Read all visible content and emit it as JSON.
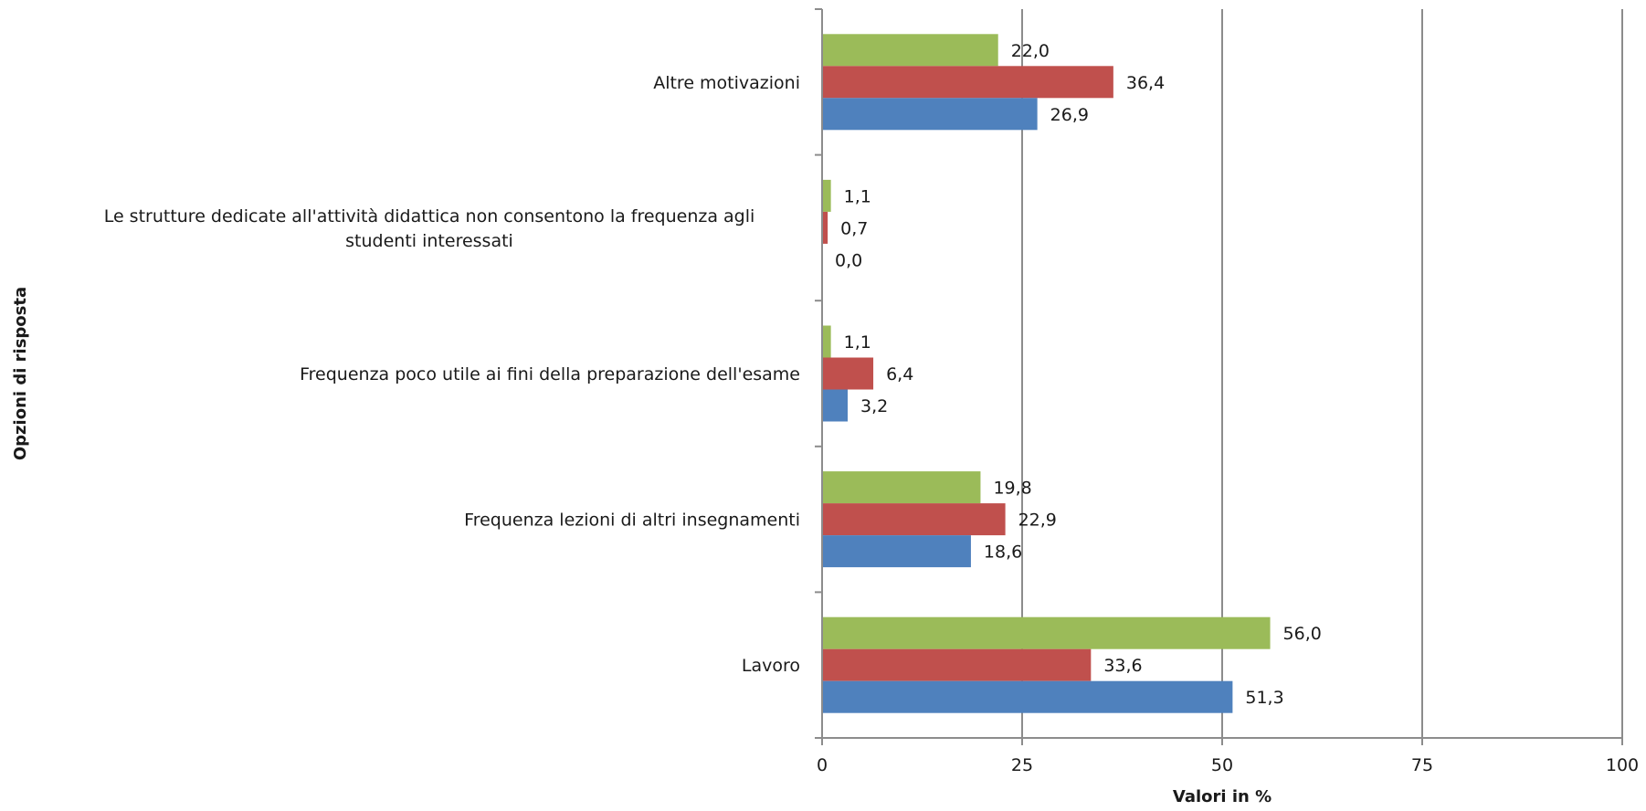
{
  "chart_data": {
    "type": "bar",
    "orientation": "horizontal",
    "categories": [
      "Altre motivazioni",
      "Le strutture dedicate all'attività didattica non consentono la frequenza agli studenti interessati",
      "Frequenza poco utile ai fini della preparazione dell'esame",
      "Frequenza lezioni di altri insegnamenti",
      "Lavoro"
    ],
    "series": [
      {
        "color": "#9BBB59",
        "values": [
          22.0,
          1.1,
          1.1,
          19.8,
          56.0
        ],
        "labels": [
          "22,0",
          "1,1",
          "1,1",
          "19,8",
          "56,0"
        ]
      },
      {
        "color": "#C0504D",
        "values": [
          36.4,
          0.7,
          6.4,
          22.9,
          33.6
        ],
        "labels": [
          "36,4",
          "0,7",
          "6,4",
          "22,9",
          "33,6"
        ]
      },
      {
        "color": "#4F81BD",
        "values": [
          26.9,
          0.0,
          3.2,
          18.6,
          51.3
        ],
        "labels": [
          "26,9",
          "0,0",
          "3,2",
          "18,6",
          "51,3"
        ]
      }
    ],
    "xlim": [
      0,
      100
    ],
    "xticks": [
      0,
      25,
      50,
      75,
      100
    ],
    "xlabel": "Valori in %",
    "ylabel": "Opzioni di risposta",
    "grid": "vertical",
    "legend": "none"
  }
}
